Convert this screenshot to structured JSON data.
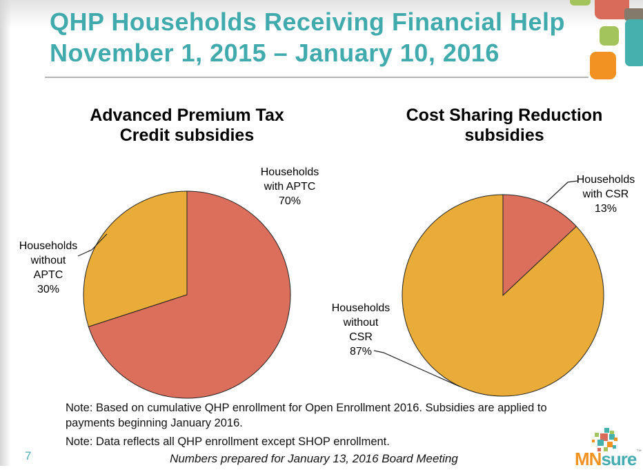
{
  "slide": {
    "title_line1": "QHP Households Receiving Financial Help",
    "title_line2": "November 1, 2015 – January 10, 2016",
    "page_number": "7",
    "notes": [
      "Note: Based on cumulative QHP enrollment for Open Enrollment 2016. Subsidies are applied to payments beginning January 2016.",
      "Note: Data reflects all QHP enrollment except SHOP enrollment."
    ],
    "footer_italic": "Numbers prepared for January 13, 2016 Board Meeting"
  },
  "logo": {
    "text_mn": "MN",
    "text_sure": "sure",
    "trademark": "™"
  },
  "colors": {
    "title_teal": "#40aaad",
    "pie_red": "#dc6e5c",
    "pie_yellow": "#e9ac38",
    "decor_green": "#a3c45d",
    "decor_orange": "#f29222",
    "decor_gray": "#837a6c",
    "decor_teal": "#45b0ad",
    "decor_red": "#d96b5b"
  },
  "chart_data": [
    {
      "type": "pie",
      "title": "Advanced Premium Tax\nCredit subsidies",
      "start_angle_deg": 0,
      "direction": "clockwise",
      "legend": "none",
      "slices": [
        {
          "label": "Households with APTC",
          "value": 70,
          "color": "#dc6e5c",
          "callout": "Households\nwith APTC\n70%"
        },
        {
          "label": "Households without APTC",
          "value": 30,
          "color": "#e9ac38",
          "callout": "Households\nwithout\nAPTC\n30%"
        }
      ]
    },
    {
      "type": "pie",
      "title": "Cost Sharing Reduction\nsubsidies",
      "start_angle_deg": 0,
      "direction": "clockwise",
      "legend": "none",
      "slices": [
        {
          "label": "Households with CSR",
          "value": 13,
          "color": "#dc6e5c",
          "callout": "Households\nwith CSR\n13%"
        },
        {
          "label": "Households without CSR",
          "value": 87,
          "color": "#e9ac38",
          "callout": "Households\nwithout\nCSR\n87%"
        }
      ]
    }
  ]
}
